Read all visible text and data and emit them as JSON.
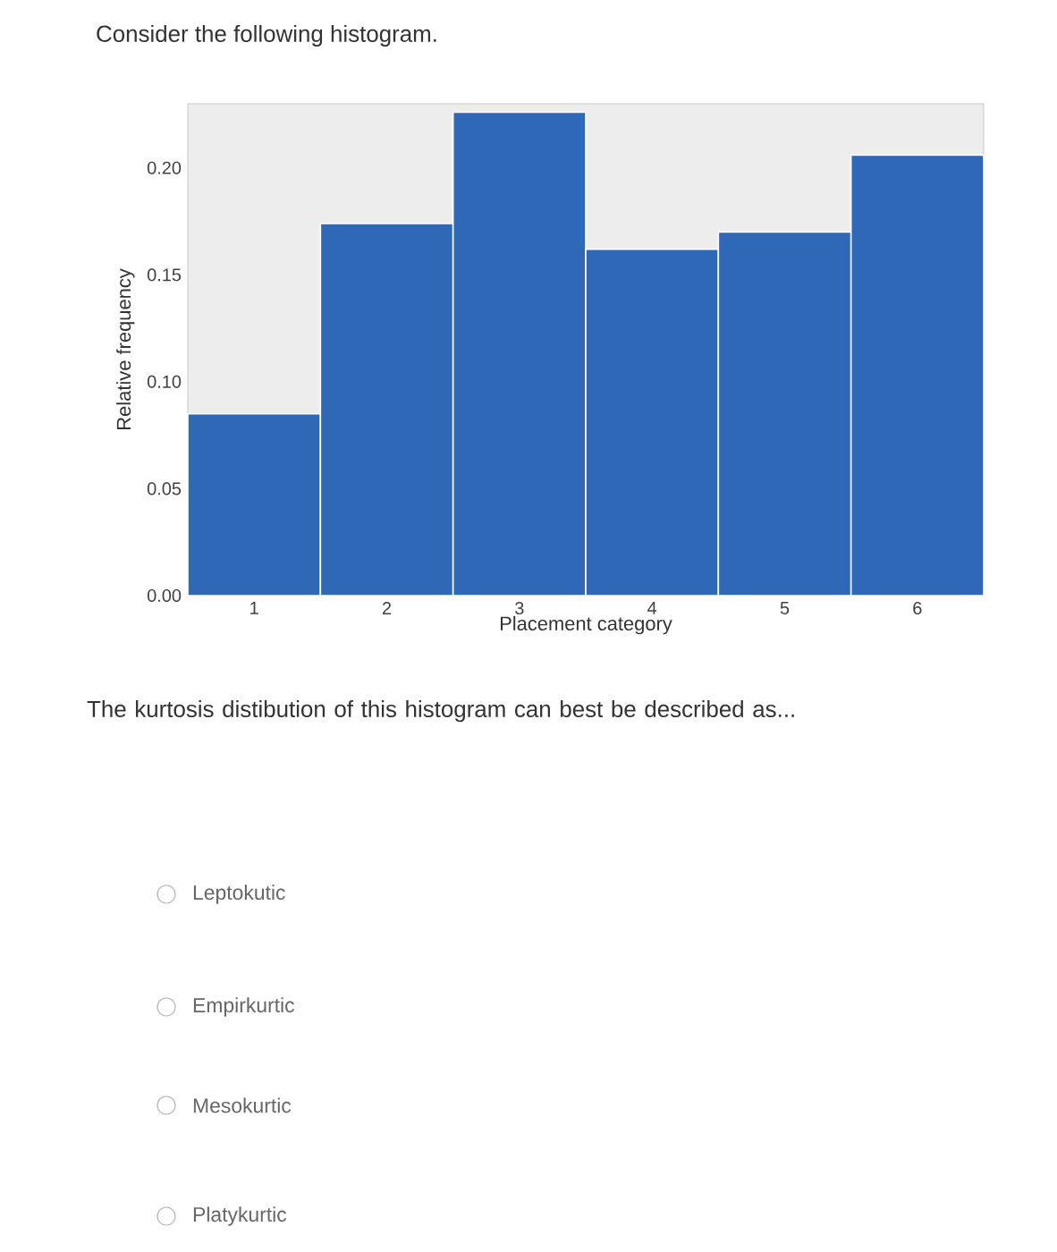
{
  "chart_data": {
    "type": "bar",
    "title": "Consider the following histogram.",
    "xlabel": "Placement category",
    "ylabel": "Relative frequency",
    "categories": [
      "1",
      "2",
      "3",
      "4",
      "5",
      "6"
    ],
    "values": [
      0.085,
      0.174,
      0.226,
      0.162,
      0.17,
      0.206
    ],
    "color": "#3068b8",
    "ylim": [
      0,
      0.23
    ],
    "yticks": [
      {
        "value": 0,
        "label": "0.00"
      },
      {
        "value": 0.05,
        "label": "0.05"
      },
      {
        "value": 0.1,
        "label": "0.10"
      },
      {
        "value": 0.15,
        "label": "0.15"
      },
      {
        "value": 0.2,
        "label": "0.20"
      }
    ],
    "annotations": [
      "The kurtosis distibution of this histogram can best be described as...",
      "Leptokutic",
      "Empirkurtic",
      "Mesokurtic",
      "Platykurtic"
    ]
  }
}
